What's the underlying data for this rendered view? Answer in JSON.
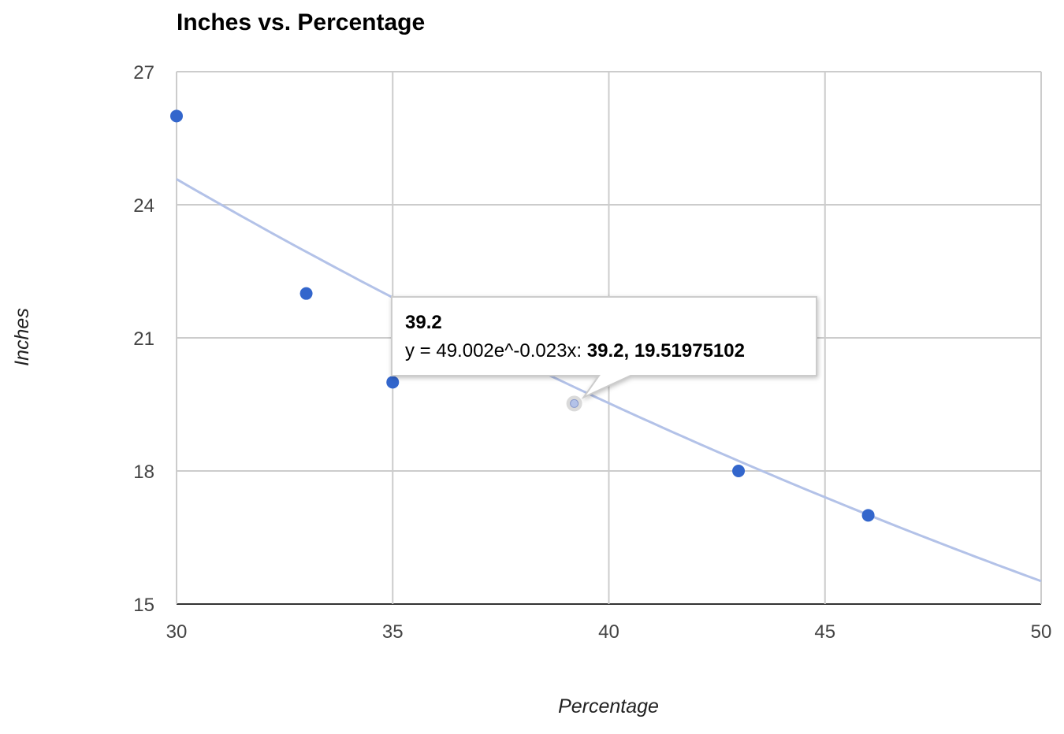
{
  "chart_data": {
    "type": "scatter",
    "title": "Inches vs. Percentage",
    "xlabel": "Percentage",
    "ylabel": "Inches",
    "xlim": [
      30,
      50
    ],
    "ylim": [
      15,
      27
    ],
    "x_ticks": [
      "30",
      "35",
      "40",
      "45",
      "50"
    ],
    "y_ticks": [
      "15",
      "18",
      "21",
      "24",
      "27"
    ],
    "grid": true,
    "points": [
      {
        "x": 30,
        "y": 26
      },
      {
        "x": 33,
        "y": 22
      },
      {
        "x": 35,
        "y": 20
      },
      {
        "x": 43,
        "y": 18
      },
      {
        "x": 46,
        "y": 17
      }
    ],
    "trendline": {
      "type": "exponential",
      "equation": "y = 49.002e^-0.023x",
      "a": 49.002,
      "b": -0.023
    },
    "tooltip": {
      "title": "39.2",
      "label": "y = 49.002e^-0.023x: ",
      "value": "39.2, 19.51975102",
      "x": 39.2,
      "y": 19.51975102
    },
    "colors": {
      "points": "#3366cc",
      "trendline": "#b3c2e8",
      "grid": "#cccccc"
    }
  }
}
